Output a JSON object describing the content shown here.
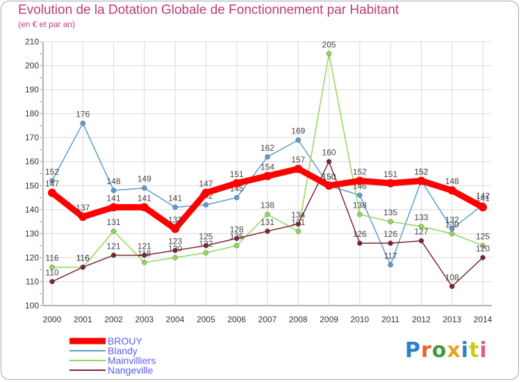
{
  "title": "Evolution de la Dotation Globale de Fonctionnement par Habitant",
  "subtitle": "(en € et par an)",
  "logo": {
    "text": "Proxiti",
    "colors": [
      "#2e7fc4",
      "#e8622a",
      "#3f9b3c",
      "#e8a21d",
      "#2e7fc4",
      "#c8cc1e",
      "#e05a88"
    ]
  },
  "chart_data": {
    "type": "line",
    "x": [
      "2000",
      "2001",
      "2002",
      "2003",
      "2004",
      "2005",
      "2006",
      "2007",
      "2008",
      "2009",
      "2010",
      "2011",
      "2012",
      "2013",
      "2014"
    ],
    "ylim": [
      100,
      210
    ],
    "yticks": [
      100,
      110,
      120,
      130,
      140,
      150,
      160,
      170,
      180,
      190,
      200,
      210
    ],
    "grid": true,
    "legend_position": "bottom-left",
    "series": [
      {
        "name": "Blandy",
        "color": "#5b9bd0",
        "values": [
          152,
          176,
          148,
          149,
          141,
          142,
          145,
          162,
          169,
          150,
          146,
          117,
          152,
          132,
          142
        ]
      },
      {
        "name": "Mainvilliers",
        "color": "#8fd85a",
        "values": [
          116,
          116,
          131,
          118,
          120,
          122,
          125,
          138,
          131,
          205,
          138,
          135,
          133,
          130,
          125
        ]
      },
      {
        "name": "Nangeville",
        "color": "#7a2630",
        "values": [
          110,
          116,
          121,
          121,
          123,
          125,
          128,
          131,
          134,
          160,
          126,
          126,
          127,
          108,
          120
        ]
      },
      {
        "name": "BROUY",
        "color": "#ff0000",
        "values": [
          147,
          137,
          141,
          141,
          132,
          147,
          151,
          154,
          157,
          150,
          152,
          151,
          152,
          148,
          141
        ]
      }
    ],
    "legend": [
      "BROUY",
      "Blandy",
      "Mainvilliers",
      "Nangeville"
    ]
  }
}
